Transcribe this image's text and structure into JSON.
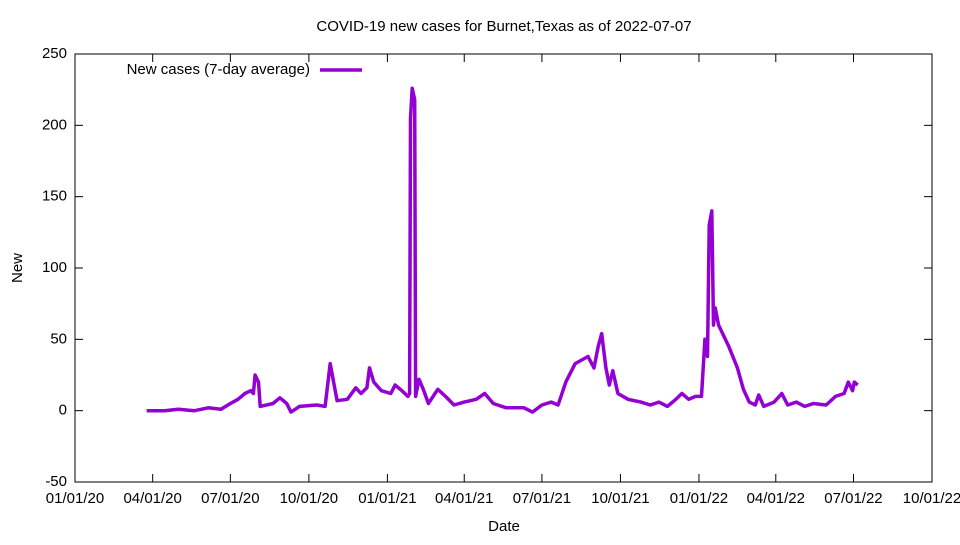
{
  "chart_data": {
    "type": "line",
    "title": "COVID-19 new cases for Burnet,Texas as of 2022-07-07",
    "x_label": "Date",
    "y_label": "New",
    "xlim": [
      "2020-01-01",
      "2022-10-01"
    ],
    "xticks": [
      {
        "value": "2020-01-01",
        "label": "01/01/20"
      },
      {
        "value": "2020-04-01",
        "label": "04/01/20"
      },
      {
        "value": "2020-07-01",
        "label": "07/01/20"
      },
      {
        "value": "2020-10-01",
        "label": "10/01/20"
      },
      {
        "value": "2021-01-01",
        "label": "01/01/21"
      },
      {
        "value": "2021-04-01",
        "label": "04/01/21"
      },
      {
        "value": "2021-07-01",
        "label": "07/01/21"
      },
      {
        "value": "2021-10-01",
        "label": "10/01/21"
      },
      {
        "value": "2022-01-01",
        "label": "01/01/22"
      },
      {
        "value": "2022-04-01",
        "label": "04/01/22"
      },
      {
        "value": "2022-07-01",
        "label": "07/01/22"
      },
      {
        "value": "2022-10-01",
        "label": "10/01/22"
      }
    ],
    "ylim": [
      -50,
      250
    ],
    "yticks": [
      -50,
      0,
      50,
      100,
      150,
      200,
      250
    ],
    "legend": "top left",
    "x": [
      "2020-03-25",
      "2020-04-15",
      "2020-05-01",
      "2020-05-20",
      "2020-06-05",
      "2020-06-20",
      "2020-07-01",
      "2020-07-10",
      "2020-07-18",
      "2020-07-25",
      "2020-07-28",
      "2020-07-30",
      "2020-08-03",
      "2020-08-05",
      "2020-08-20",
      "2020-08-28",
      "2020-09-05",
      "2020-09-10",
      "2020-09-20",
      "2020-10-10",
      "2020-10-20",
      "2020-10-26",
      "2020-10-30",
      "2020-11-03",
      "2020-11-15",
      "2020-11-25",
      "2020-12-01",
      "2020-12-08",
      "2020-12-11",
      "2020-12-16",
      "2020-12-25",
      "2021-01-05",
      "2021-01-10",
      "2021-01-18",
      "2021-01-25",
      "2021-01-27",
      "2021-01-28",
      "2021-01-30",
      "2021-02-02",
      "2021-02-03",
      "2021-02-07",
      "2021-02-12",
      "2021-02-18",
      "2021-03-01",
      "2021-03-10",
      "2021-03-20",
      "2021-04-01",
      "2021-04-15",
      "2021-04-25",
      "2021-05-05",
      "2021-05-20",
      "2021-06-10",
      "2021-06-20",
      "2021-07-01",
      "2021-07-12",
      "2021-07-20",
      "2021-07-29",
      "2021-08-09",
      "2021-08-24",
      "2021-08-31",
      "2021-09-05",
      "2021-09-09",
      "2021-09-14",
      "2021-09-18",
      "2021-09-22",
      "2021-09-28",
      "2021-10-10",
      "2021-10-25",
      "2021-11-05",
      "2021-11-15",
      "2021-11-25",
      "2021-12-05",
      "2021-12-12",
      "2021-12-20",
      "2021-12-28",
      "2022-01-04",
      "2022-01-08",
      "2022-01-11",
      "2022-01-13",
      "2022-01-16",
      "2022-01-18",
      "2022-01-20",
      "2022-01-24",
      "2022-02-05",
      "2022-02-15",
      "2022-02-22",
      "2022-03-01",
      "2022-03-08",
      "2022-03-12",
      "2022-03-18",
      "2022-03-30",
      "2022-04-08",
      "2022-04-15",
      "2022-04-25",
      "2022-05-05",
      "2022-05-15",
      "2022-05-30",
      "2022-06-10",
      "2022-06-20",
      "2022-06-25",
      "2022-06-30",
      "2022-07-02",
      "2022-07-06"
    ],
    "series": [
      {
        "name": "New cases (7-day average)",
        "color": "#9400d3",
        "values": [
          0,
          0,
          1,
          0,
          2,
          1,
          5,
          8,
          12,
          14,
          12,
          25,
          20,
          3,
          5,
          9,
          5,
          -1,
          3,
          4,
          3,
          33,
          20,
          7,
          8,
          16,
          12,
          16,
          30,
          20,
          14,
          12,
          18,
          14,
          10,
          12,
          205,
          226,
          218,
          10,
          22,
          15,
          5,
          15,
          10,
          4,
          6,
          8,
          12,
          5,
          2,
          2,
          -1,
          4,
          6,
          4,
          20,
          33,
          38,
          30,
          45,
          54,
          30,
          18,
          28,
          12,
          8,
          6,
          4,
          6,
          3,
          8,
          12,
          8,
          10,
          10,
          50,
          38,
          130,
          140,
          60,
          72,
          60,
          45,
          30,
          15,
          6,
          4,
          11,
          3,
          6,
          12,
          4,
          6,
          3,
          5,
          4,
          10,
          12,
          20,
          14,
          20,
          18
        ]
      }
    ]
  }
}
